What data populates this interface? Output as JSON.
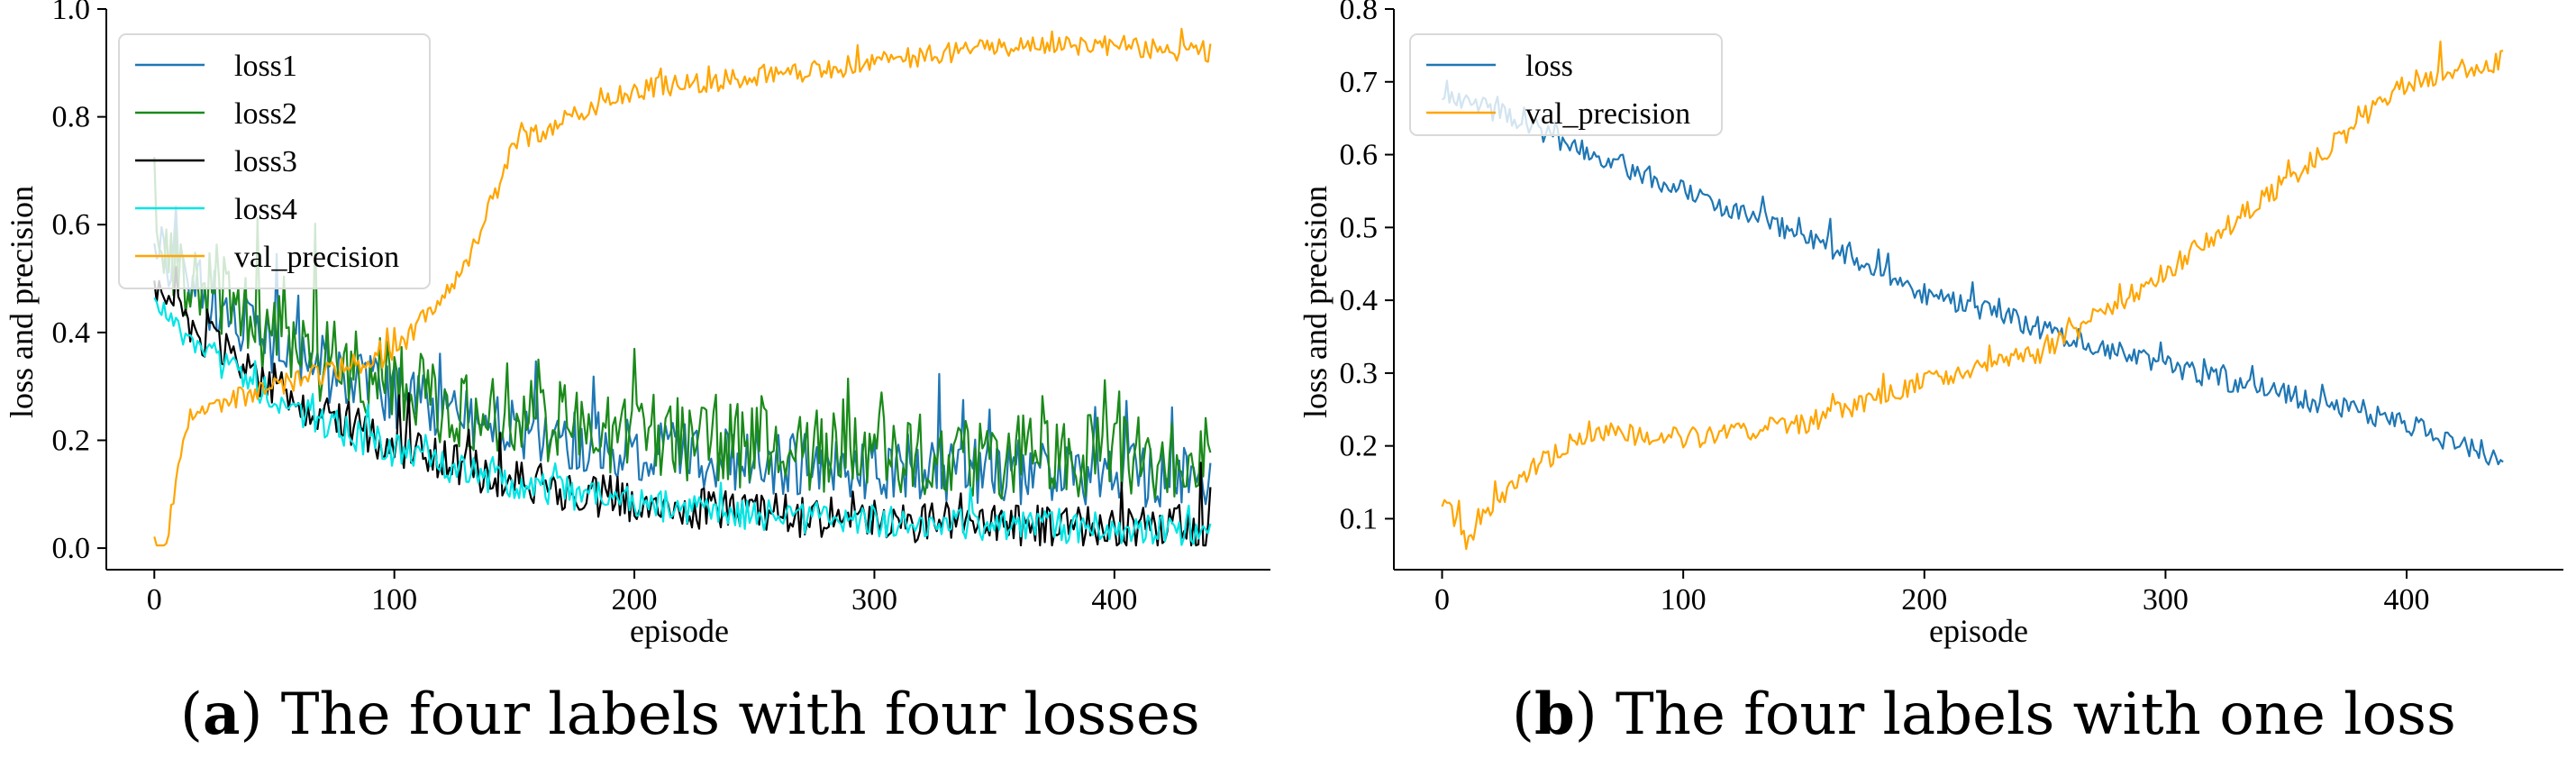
{
  "captions": [
    {
      "letter": "a",
      "text": "The four labels with four losses"
    },
    {
      "letter": "b",
      "text": "The four labels with one loss"
    }
  ],
  "chart_data": [
    {
      "type": "line",
      "xlabel": "episode",
      "ylabel": "loss and precision",
      "xlim": [
        -20,
        465
      ],
      "ylim": [
        -0.04,
        1.0
      ],
      "xticks": [
        0,
        100,
        200,
        300,
        400
      ],
      "yticks": [
        0.0,
        0.2,
        0.4,
        0.6,
        0.8,
        1.0
      ],
      "legend_position": "upper-left",
      "n_points": 441,
      "series": [
        {
          "name": "loss1",
          "color": "#1f77b4",
          "start": 0.55,
          "mid": 0.35,
          "end": 0.13,
          "noise": 0.06
        },
        {
          "name": "loss2",
          "color": "#1a8a1a",
          "start": 0.55,
          "mid": 0.35,
          "end": 0.16,
          "noise": 0.08
        },
        {
          "name": "loss3",
          "color": "#000000",
          "start": 0.48,
          "mid": 0.12,
          "end": 0.03,
          "noise": 0.04
        },
        {
          "name": "loss4",
          "color": "#00e5e5",
          "start": 0.45,
          "mid": 0.08,
          "end": 0.03,
          "noise": 0.03
        },
        {
          "name": "val_precision",
          "color": "#ffa500",
          "points": [
            [
              0,
              0.01
            ],
            [
              5,
              0.01
            ],
            [
              12,
              0.2
            ],
            [
              20,
              0.26
            ],
            [
              50,
              0.3
            ],
            [
              100,
              0.36
            ],
            [
              130,
              0.52
            ],
            [
              150,
              0.75
            ],
            [
              200,
              0.85
            ],
            [
              300,
              0.9
            ],
            [
              350,
              0.93
            ],
            [
              400,
              0.93
            ],
            [
              440,
              0.92
            ]
          ],
          "noise": 0.02
        }
      ]
    },
    {
      "type": "line",
      "xlabel": "episode",
      "ylabel": "loss and precision",
      "xlim": [
        -20,
        465
      ],
      "ylim": [
        0.03,
        0.8
      ],
      "xticks": [
        0,
        100,
        200,
        300,
        400
      ],
      "yticks": [
        0.1,
        0.2,
        0.3,
        0.4,
        0.5,
        0.6,
        0.7,
        0.8
      ],
      "legend_position": "upper-left",
      "n_points": 441,
      "series": [
        {
          "name": "loss",
          "color": "#1f77b4",
          "points": [
            [
              0,
              0.69
            ],
            [
              50,
              0.62
            ],
            [
              100,
              0.55
            ],
            [
              150,
              0.49
            ],
            [
              200,
              0.41
            ],
            [
              250,
              0.36
            ],
            [
              300,
              0.31
            ],
            [
              350,
              0.27
            ],
            [
              400,
              0.23
            ],
            [
              440,
              0.18
            ]
          ],
          "noise": 0.015
        },
        {
          "name": "val_precision",
          "color": "#ffa500",
          "points": [
            [
              0,
              0.13
            ],
            [
              10,
              0.07
            ],
            [
              30,
              0.15
            ],
            [
              60,
              0.22
            ],
            [
              100,
              0.21
            ],
            [
              150,
              0.23
            ],
            [
              200,
              0.29
            ],
            [
              250,
              0.33
            ],
            [
              300,
              0.44
            ],
            [
              350,
              0.56
            ],
            [
              400,
              0.7
            ],
            [
              440,
              0.73
            ]
          ],
          "noise": 0.015
        }
      ]
    }
  ]
}
